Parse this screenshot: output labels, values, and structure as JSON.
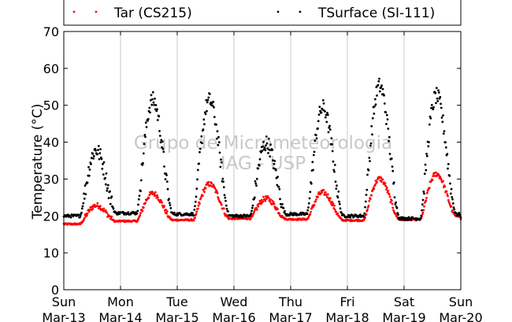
{
  "chart_data": {
    "type": "scatter",
    "title": "",
    "xlabel": "",
    "ylabel": "Temperature (°C)",
    "ylim": [
      0,
      70
    ],
    "yticks": [
      0,
      10,
      20,
      30,
      40,
      50,
      60,
      70
    ],
    "xlim": [
      "2016-03-13",
      "2016-03-20"
    ],
    "xtick_labels": [
      [
        "Sun",
        "Mar-13"
      ],
      [
        "Mon",
        "Mar-14"
      ],
      [
        "Tue",
        "Mar-15"
      ],
      [
        "Wed",
        "Mar-16"
      ],
      [
        "Thu",
        "Mar-17"
      ],
      [
        "Fri",
        "Mar-18"
      ],
      [
        "Sat",
        "Mar-19"
      ],
      [
        "Sun",
        "Mar-20"
      ]
    ],
    "grid": "vertical",
    "legend_position": "top",
    "watermark": [
      "Grupo de Micrometeorologia",
      "IAG - USP"
    ],
    "series": [
      {
        "name": "Tar (CS215)",
        "color": "#ff0000",
        "marker": "dot",
        "daily": [
          {
            "date": "2016-03-13",
            "min": 17.8,
            "max": 22.5
          },
          {
            "date": "2016-03-14",
            "min": 18.6,
            "max": 26.0
          },
          {
            "date": "2016-03-15",
            "min": 18.9,
            "max": 28.5
          },
          {
            "date": "2016-03-16",
            "min": 19.3,
            "max": 24.8
          },
          {
            "date": "2016-03-17",
            "min": 19.1,
            "max": 26.5
          },
          {
            "date": "2016-03-18",
            "min": 18.8,
            "max": 30.0
          },
          {
            "date": "2016-03-19",
            "min": 19.0,
            "max": 31.0
          }
        ],
        "end_value": 20.0
      },
      {
        "name": "TSurface (SI-111)",
        "color": "#000000",
        "marker": "dot",
        "daily": [
          {
            "date": "2016-03-13",
            "min": 20.0,
            "max": 37.5
          },
          {
            "date": "2016-03-14",
            "min": 20.8,
            "max": 51.5
          },
          {
            "date": "2016-03-15",
            "min": 20.5,
            "max": 51.5
          },
          {
            "date": "2016-03-16",
            "min": 20.0,
            "max": 39.5
          },
          {
            "date": "2016-03-17",
            "min": 20.5,
            "max": 49.5
          },
          {
            "date": "2016-03-18",
            "min": 20.0,
            "max": 55.5
          },
          {
            "date": "2016-03-19",
            "min": 19.3,
            "max": 52.0
          }
        ],
        "end_value": 20.5
      }
    ]
  }
}
